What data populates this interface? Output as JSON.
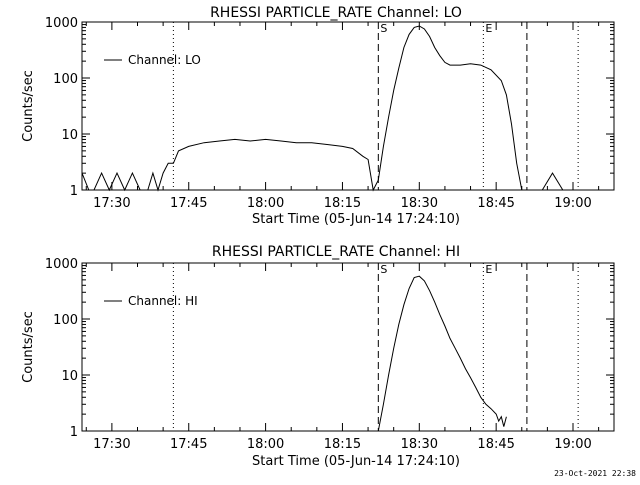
{
  "footer_timestamp": "23-Oct-2021 22:38",
  "chart_data": [
    {
      "type": "line",
      "title": "RHESSI PARTICLE_RATE Channel: LO",
      "xlabel": "Start Time (05-Jun-14 17:24:10)",
      "ylabel": "Counts/sec",
      "yscale": "log",
      "xlim": [
        "17:24:10",
        "19:08"
      ],
      "ylim": [
        1,
        1000
      ],
      "x_ticks": [
        "17:30",
        "17:45",
        "18:00",
        "18:15",
        "18:30",
        "18:45",
        "19:00"
      ],
      "y_ticks": [
        "1",
        "10",
        "100",
        "1000"
      ],
      "legend": {
        "label": "Channel: LO",
        "position": "top-left"
      },
      "markers": [
        {
          "time": "17:42:00",
          "style": "dotted",
          "label": ""
        },
        {
          "time": "18:22:00",
          "style": "dashed",
          "label": "S"
        },
        {
          "time": "18:42:30",
          "style": "dotted",
          "label": "E"
        },
        {
          "time": "18:51:00",
          "style": "dashed",
          "label": ""
        },
        {
          "time": "19:01:00",
          "style": "dotted",
          "label": ""
        }
      ],
      "series": [
        {
          "name": "Channel: LO",
          "x": [
            "17:24:10",
            "17:25:30",
            "17:26:30",
            "17:28:00",
            "17:29:30",
            "17:31:00",
            "17:32:30",
            "17:34:00",
            "17:35:30",
            "17:37:00",
            "17:38:00",
            "17:39:00",
            "17:40:00",
            "17:41:00",
            "17:41:30",
            "17:42:00",
            "17:43:00",
            "17:45:00",
            "17:48:00",
            "17:51:00",
            "17:54:00",
            "17:57:00",
            "18:00:00",
            "18:03:00",
            "18:06:00",
            "18:09:00",
            "18:12:00",
            "18:15:00",
            "18:17:00",
            "18:19:00",
            "18:20:00",
            "18:21:00",
            "18:22:00",
            "18:23:00",
            "18:24:00",
            "18:25:00",
            "18:26:00",
            "18:27:00",
            "18:28:00",
            "18:29:00",
            "18:30:00",
            "18:31:00",
            "18:32:00",
            "18:33:00",
            "18:34:00",
            "18:35:00",
            "18:36:00",
            "18:38:00",
            "18:40:00",
            "18:42:00",
            "18:44:00",
            "18:46:00",
            "18:47:00",
            "18:48:00",
            "18:49:00",
            "18:50:00",
            "18:51:00",
            "18:52:00",
            "18:54:00",
            "18:56:00",
            "18:58:00"
          ],
          "y": [
            2,
            1,
            1,
            2,
            1,
            2,
            1,
            2,
            1,
            1,
            2,
            1,
            2,
            3,
            3,
            3,
            5,
            6,
            7,
            7.5,
            8,
            7.5,
            8,
            7.5,
            7,
            7,
            6.5,
            6,
            5.5,
            4,
            3.5,
            1,
            1.5,
            6,
            20,
            60,
            150,
            350,
            600,
            800,
            850,
            750,
            550,
            350,
            250,
            190,
            170,
            170,
            180,
            170,
            140,
            90,
            50,
            15,
            3,
            1,
            1,
            1,
            1,
            2,
            1
          ]
        }
      ]
    },
    {
      "type": "line",
      "title": "RHESSI PARTICLE_RATE Channel: HI",
      "xlabel": "Start Time (05-Jun-14 17:24:10)",
      "ylabel": "Counts/sec",
      "yscale": "log",
      "xlim": [
        "17:24:10",
        "19:08"
      ],
      "ylim": [
        1,
        1000
      ],
      "x_ticks": [
        "17:30",
        "17:45",
        "18:00",
        "18:15",
        "18:30",
        "18:45",
        "19:00"
      ],
      "y_ticks": [
        "1",
        "10",
        "100",
        "1000"
      ],
      "legend": {
        "label": "Channel: HI",
        "position": "top-left"
      },
      "markers": [
        {
          "time": "17:42:00",
          "style": "dotted",
          "label": ""
        },
        {
          "time": "18:22:00",
          "style": "dashed",
          "label": "S"
        },
        {
          "time": "18:42:30",
          "style": "dotted",
          "label": "E"
        },
        {
          "time": "18:51:00",
          "style": "dashed",
          "label": ""
        },
        {
          "time": "19:01:00",
          "style": "dotted",
          "label": ""
        }
      ],
      "series": [
        {
          "name": "Channel: HI",
          "x": [
            "18:22:00",
            "18:23:00",
            "18:24:00",
            "18:25:00",
            "18:26:00",
            "18:27:00",
            "18:28:00",
            "18:29:00",
            "18:30:00",
            "18:31:00",
            "18:32:00",
            "18:33:00",
            "18:34:00",
            "18:35:00",
            "18:36:00",
            "18:37:00",
            "18:38:00",
            "18:39:00",
            "18:40:00",
            "18:41:00",
            "18:42:00",
            "18:43:00",
            "18:44:00",
            "18:45:00",
            "18:45:30",
            "18:46:00",
            "18:46:30",
            "18:47:00"
          ],
          "y": [
            1,
            3,
            10,
            30,
            80,
            180,
            350,
            550,
            580,
            480,
            320,
            200,
            120,
            75,
            45,
            30,
            20,
            13,
            9,
            6,
            4,
            3,
            2.5,
            2,
            1.5,
            1.8,
            1.2,
            1.8
          ]
        }
      ]
    }
  ]
}
